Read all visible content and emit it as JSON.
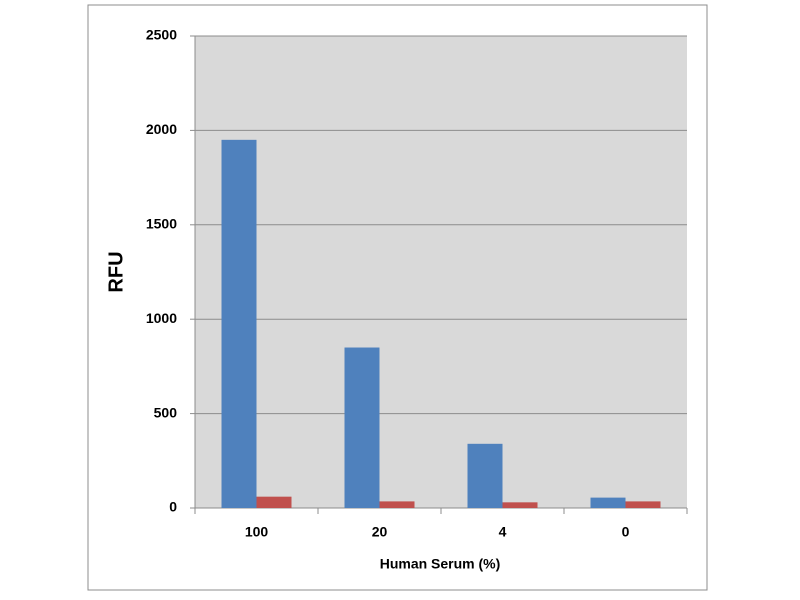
{
  "chart_data": {
    "type": "bar",
    "y_label": "RFU",
    "x_label": "Human Serum (%)",
    "categories": [
      "100",
      "20",
      "4",
      "0"
    ],
    "series": [
      {
        "color": "#4f81bd",
        "values": [
          1950,
          850,
          340,
          55
        ]
      },
      {
        "color": "#c0504d",
        "values": [
          60,
          35,
          30,
          35
        ]
      }
    ],
    "ylim": [
      0,
      2500
    ],
    "yticks": [
      0,
      500,
      1000,
      1500,
      2000,
      2500
    ],
    "grid": true
  }
}
